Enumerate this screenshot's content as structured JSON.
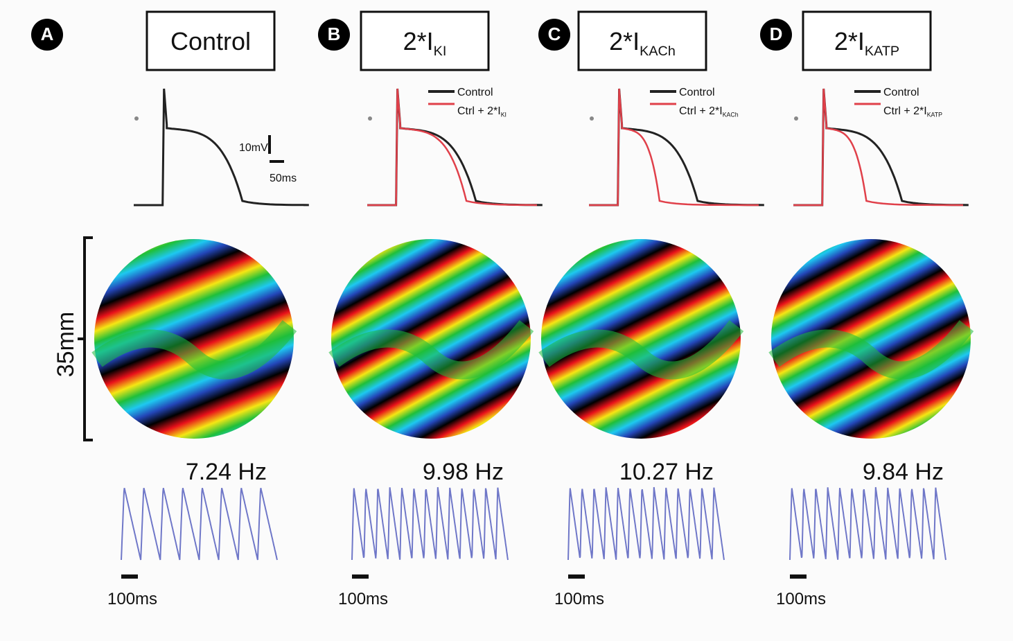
{
  "panels": [
    {
      "letter": "A",
      "title_main": "Control",
      "frequency": "7.24 Hz",
      "time_scale": "100ms"
    },
    {
      "letter": "B",
      "title_main": "2*I",
      "title_sub": "KI",
      "legend_control": "Control",
      "legend_test_main": "Ctrl + 2*I",
      "legend_test_sub": "KI",
      "frequency": "9.98 Hz",
      "time_scale": "100ms"
    },
    {
      "letter": "C",
      "title_main": "2*I",
      "title_sub": "KACh",
      "legend_control": "Control",
      "legend_test_main": "Ctrl + 2*I",
      "legend_test_sub": "KACh",
      "frequency": "10.27 Hz",
      "time_scale": "100ms"
    },
    {
      "letter": "D",
      "title_main": "2*I",
      "title_sub": "KATP",
      "legend_control": "Control",
      "legend_test_main": "Ctrl + 2*I",
      "legend_test_sub": "KATP",
      "frequency": "9.84 Hz",
      "time_scale": "100ms"
    }
  ],
  "ap_scale": {
    "voltage": "10mV",
    "time": "50ms"
  },
  "size_scale": "35mm"
}
